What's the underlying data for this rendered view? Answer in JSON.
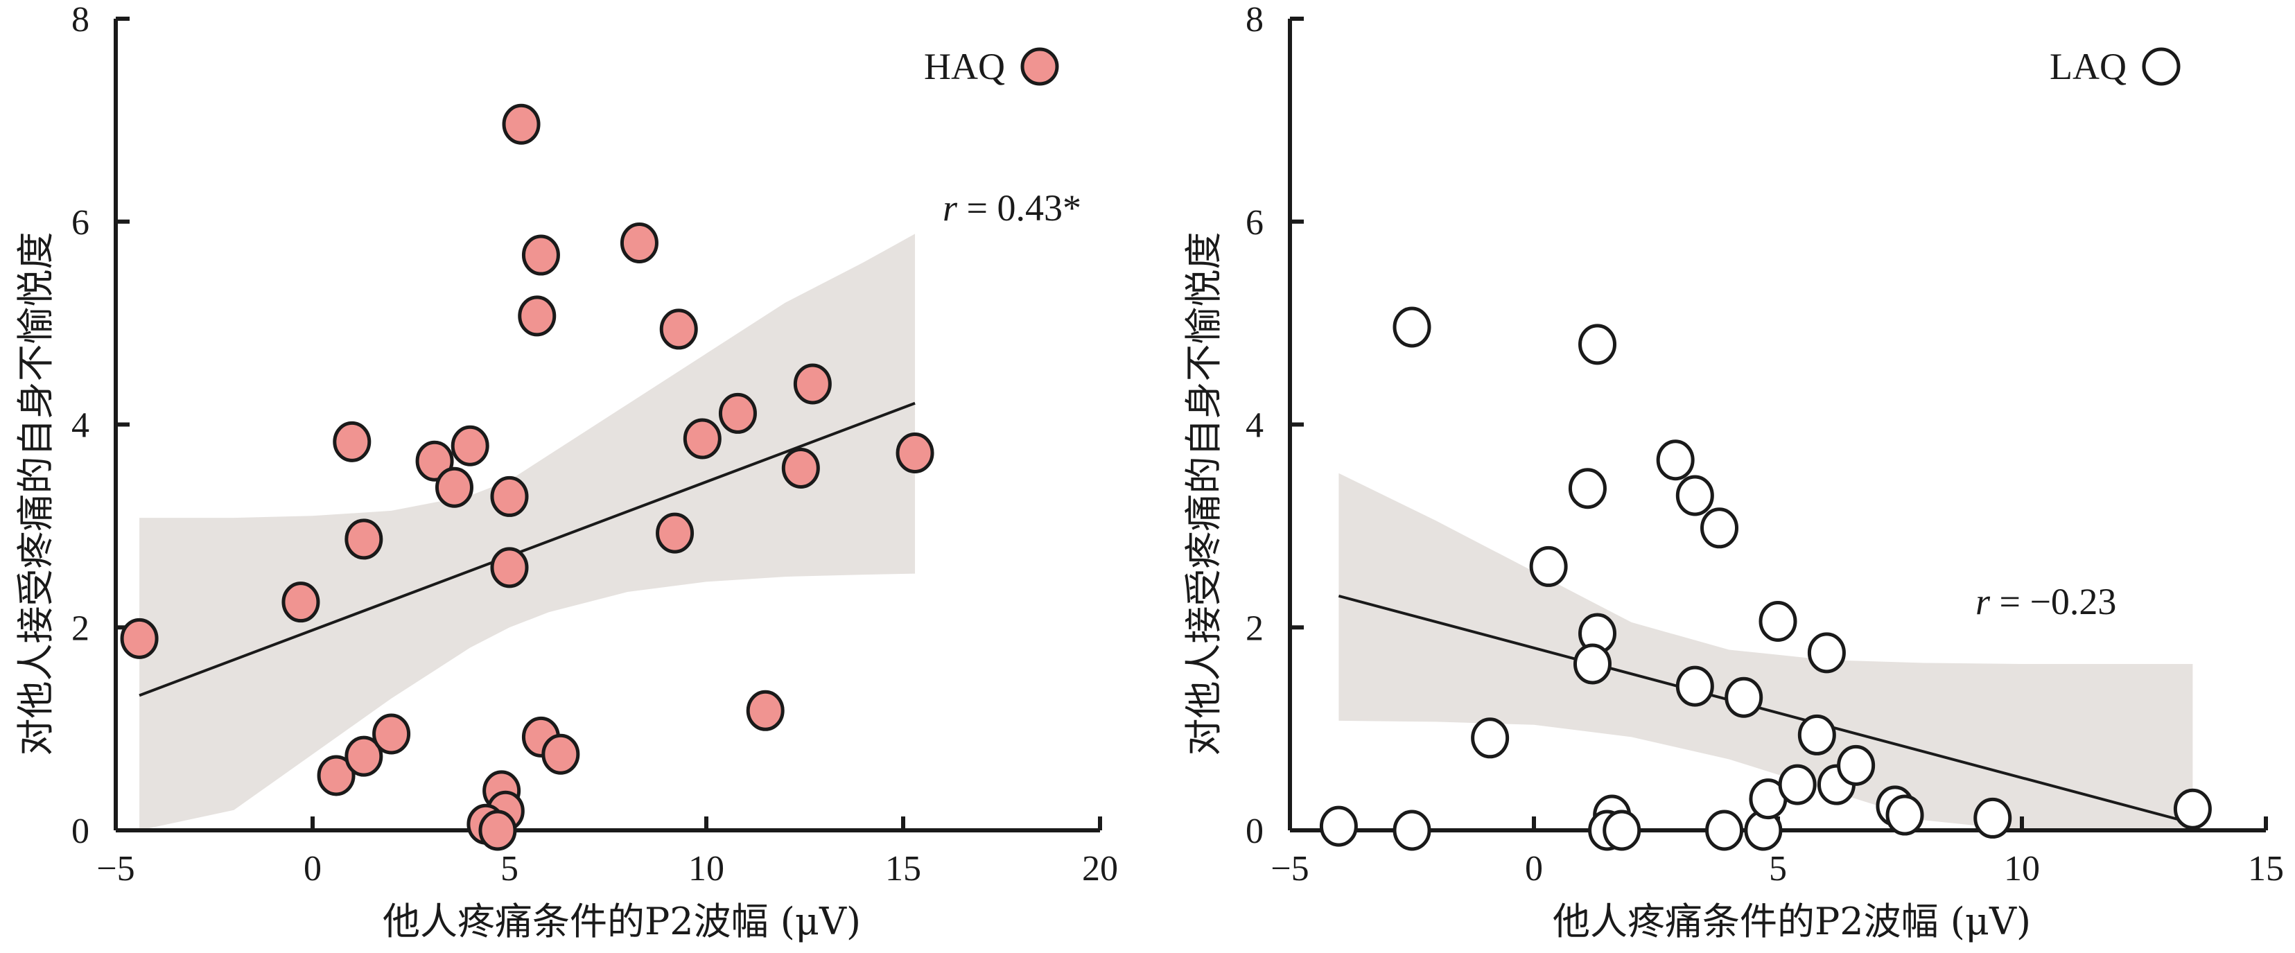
{
  "chart_data": [
    {
      "type": "scatter",
      "group": "HAQ",
      "legend": {
        "label": "HAQ",
        "marker_fill": "#f09491",
        "position": "top-right"
      },
      "annotation": {
        "r_symbol": "r",
        "r_value": " = 0.43*"
      },
      "xlabel": "他人疼痛条件的P2波幅 (μV)",
      "ylabel": "对他人接受疼痛的自身不愉悦度",
      "xlim": [
        -5,
        20
      ],
      "ylim": [
        0,
        8
      ],
      "xticks": [
        -5,
        0,
        5,
        10,
        15,
        20
      ],
      "xtick_labels": [
        "−5",
        "0",
        "5",
        "10",
        "15",
        "20"
      ],
      "yticks": [
        0,
        2,
        4,
        6,
        8
      ],
      "ytick_labels": [
        "0",
        "2",
        "4",
        "6",
        "8"
      ],
      "grid": false,
      "marker_fill": "#f09491",
      "band_color": "#e6e2df",
      "fit_line": {
        "x": [
          -4.4,
          15.3
        ],
        "y": [
          1.33,
          4.21
        ]
      },
      "ci_band": {
        "x": [
          -4.4,
          -2,
          0,
          2,
          4,
          5,
          6,
          8,
          10,
          12,
          14,
          15.3
        ],
        "upper": [
          3.08,
          3.08,
          3.1,
          3.15,
          3.3,
          3.45,
          3.7,
          4.2,
          4.7,
          5.2,
          5.6,
          5.88
        ],
        "lower": [
          -0.6,
          0.2,
          0.75,
          1.3,
          1.8,
          2.0,
          2.15,
          2.35,
          2.45,
          2.5,
          2.52,
          2.53
        ]
      },
      "points": {
        "x": [
          -4.4,
          -0.3,
          1.0,
          1.3,
          3.1,
          3.6,
          4.0,
          5.0,
          5.0,
          5.3,
          5.8,
          5.7,
          8.3,
          9.3,
          9.2,
          9.9,
          10.8,
          12.7,
          12.4,
          15.3,
          11.5,
          0.6,
          1.3,
          2.0,
          5.8,
          6.3,
          4.8,
          4.9,
          4.4,
          4.7
        ],
        "y": [
          1.89,
          2.25,
          3.83,
          2.87,
          3.64,
          3.38,
          3.79,
          3.29,
          2.59,
          6.96,
          5.67,
          5.07,
          5.79,
          4.94,
          2.93,
          3.86,
          4.11,
          4.4,
          3.57,
          3.72,
          1.18,
          0.54,
          0.73,
          0.95,
          0.92,
          0.75,
          0.39,
          0.19,
          0.06,
          0.0
        ]
      }
    },
    {
      "type": "scatter",
      "group": "LAQ",
      "legend": {
        "label": "LAQ",
        "marker_fill": "#ffffff",
        "position": "top-right"
      },
      "annotation": {
        "r_symbol": "r",
        "r_value": " = −0.23"
      },
      "xlabel": "他人疼痛条件的P2波幅 (μV)",
      "ylabel": "对他人接受疼痛的自身不愉悦度",
      "xlim": [
        -5,
        15
      ],
      "ylim": [
        0,
        8
      ],
      "xticks": [
        -5,
        0,
        5,
        10,
        15
      ],
      "xtick_labels": [
        "−5",
        "0",
        "5",
        "10",
        "15"
      ],
      "yticks": [
        0,
        2,
        4,
        6,
        8
      ],
      "ytick_labels": [
        "0",
        "2",
        "4",
        "6",
        "8"
      ],
      "grid": false,
      "marker_fill": "#ffffff",
      "band_color": "#e6e2df",
      "fit_line": {
        "x": [
          -4.0,
          13.5
        ],
        "y": [
          2.31,
          0.07
        ]
      },
      "ci_band": {
        "x": [
          -4.0,
          -2,
          0,
          2,
          4,
          6,
          8,
          10,
          12,
          13.5
        ],
        "upper": [
          3.52,
          3.05,
          2.55,
          2.05,
          1.78,
          1.68,
          1.65,
          1.64,
          1.64,
          1.64
        ],
        "lower": [
          1.08,
          1.07,
          1.04,
          0.92,
          0.7,
          0.4,
          0.1,
          -0.2,
          -0.5,
          -0.7
        ]
      },
      "points": {
        "x": [
          -4.0,
          -2.5,
          -2.5,
          -0.9,
          0.3,
          1.1,
          1.3,
          1.3,
          1.2,
          1.6,
          1.5,
          1.8,
          2.9,
          3.3,
          3.8,
          3.3,
          4.3,
          3.9,
          4.7,
          4.8,
          5.0,
          5.4,
          5.8,
          6.0,
          6.2,
          6.6,
          7.4,
          7.6,
          9.4,
          13.5
        ],
        "y": [
          0.04,
          0.0,
          4.96,
          0.91,
          2.6,
          3.37,
          4.79,
          1.94,
          1.64,
          0.15,
          0.0,
          0.0,
          3.65,
          3.3,
          2.98,
          1.42,
          1.31,
          0.0,
          0.0,
          0.31,
          2.06,
          0.45,
          0.94,
          1.75,
          0.45,
          0.64,
          0.24,
          0.15,
          0.12,
          0.21
        ]
      }
    }
  ]
}
